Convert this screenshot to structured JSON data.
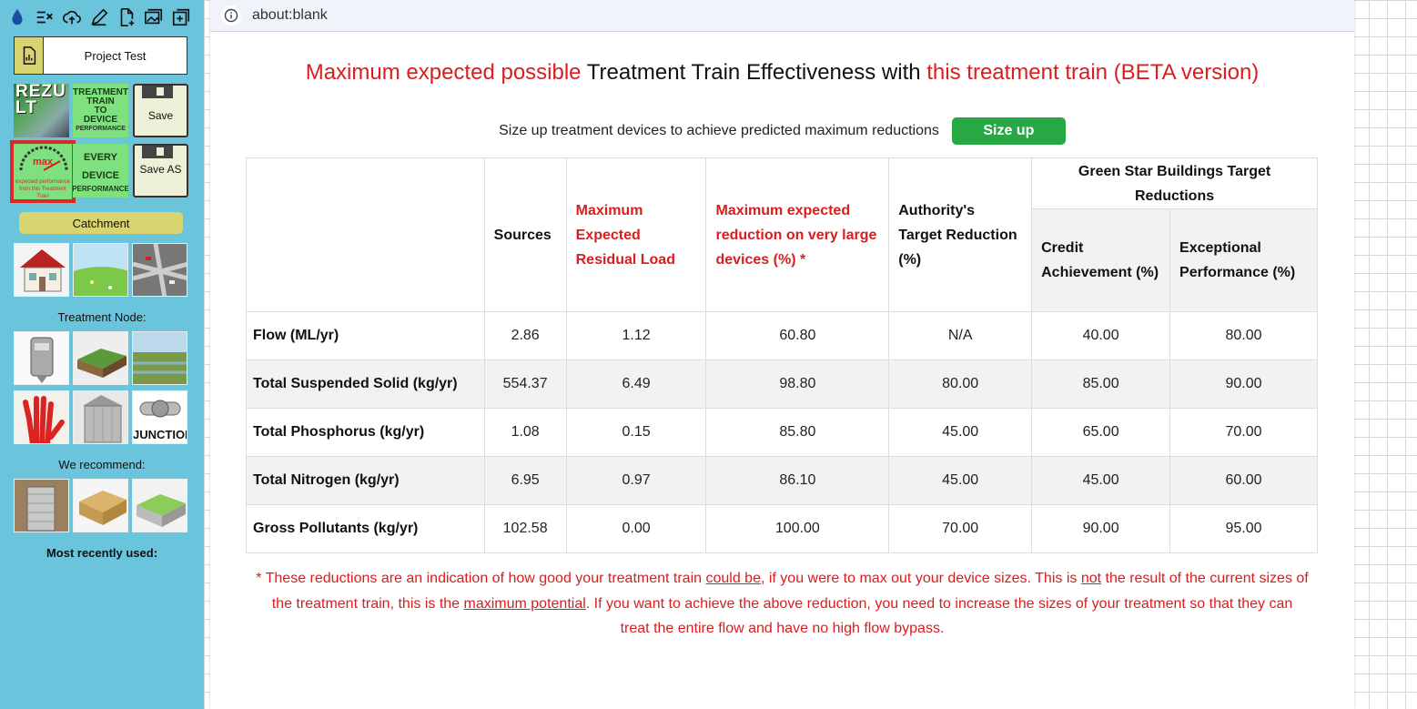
{
  "sidebar": {
    "toolbar_icons": [
      "water-drop-icon",
      "list-edit-icon",
      "cloud-upload-icon",
      "pencil-icon",
      "new-file-icon",
      "images-icon",
      "add-box-icon"
    ],
    "project_name": "Project Test",
    "tiles": {
      "rezult": "REZU LT",
      "treatment_train_lines": [
        "TREATMENT",
        "TRAIN",
        "TO",
        "DEVICE"
      ],
      "treatment_train_sub": "PERFORMANCE",
      "save": "Save",
      "max_label": "max",
      "max_sub": "expected performance from this Treatment Train",
      "every_lines": [
        "EVERY",
        "DEVICE"
      ],
      "every_sub": "PERFORMANCE",
      "save_as": "Save AS"
    },
    "catchment_button": "Catchment",
    "treatment_node_label": "Treatment Node:",
    "junction_label": "JUNCTION",
    "recommend_label": "We recommend:",
    "recent_label": "Most recently used:"
  },
  "popup": {
    "url": "about:blank",
    "heading": {
      "part1": "Maximum expected possible",
      "part2": " Treatment Train Effectiveness with ",
      "part3": "this treatment train (BETA version)"
    },
    "sizeup_text": "Size up treatment devices to achieve predicted maximum reductions",
    "sizeup_button": "Size up",
    "table": {
      "headers": {
        "sources": "Sources",
        "residual": "Maximum Expected Residual Load",
        "reduction": "Maximum expected reduction on very large devices (%) *",
        "authority": "Authority's Target Reduction (%)",
        "greenstar": "Green Star Buildings Target Reductions",
        "credit": "Credit Achievement (%)",
        "exceptional": "Exceptional Performance (%)"
      },
      "rows": [
        {
          "label": "Flow (ML/yr)",
          "sources": "2.86",
          "residual": "1.12",
          "reduction": "60.80",
          "authority": "N/A",
          "credit": "40.00",
          "exceptional": "80.00"
        },
        {
          "label": "Total Suspended Solid (kg/yr)",
          "sources": "554.37",
          "residual": "6.49",
          "reduction": "98.80",
          "authority": "80.00",
          "credit": "85.00",
          "exceptional": "90.00"
        },
        {
          "label": "Total Phosphorus (kg/yr)",
          "sources": "1.08",
          "residual": "0.15",
          "reduction": "85.80",
          "authority": "45.00",
          "credit": "65.00",
          "exceptional": "70.00"
        },
        {
          "label": "Total Nitrogen (kg/yr)",
          "sources": "6.95",
          "residual": "0.97",
          "reduction": "86.10",
          "authority": "45.00",
          "credit": "45.00",
          "exceptional": "60.00"
        },
        {
          "label": "Gross Pollutants (kg/yr)",
          "sources": "102.58",
          "residual": "0.00",
          "reduction": "100.00",
          "authority": "70.00",
          "credit": "90.00",
          "exceptional": "95.00"
        }
      ]
    },
    "footnote": {
      "a": "* These reductions are an indication of how good your treatment train ",
      "b": "could be",
      "c": ", if you were to max out your device sizes. This is ",
      "d": "not",
      "e": " the result of the current sizes of the treatment train, this is the ",
      "f": "maximum potential",
      "g": ". If you want to achieve the above reduction, you need to increase the sizes of your treatment so that they can treat the entire flow and have no high flow bypass."
    }
  },
  "colors": {
    "sidebar_bg": "#6ac4dc",
    "accent_red": "#d81e1e",
    "size_up_green": "#28a745",
    "tile_green": "#7ee07e",
    "catchment_yellow": "#d8d470"
  }
}
